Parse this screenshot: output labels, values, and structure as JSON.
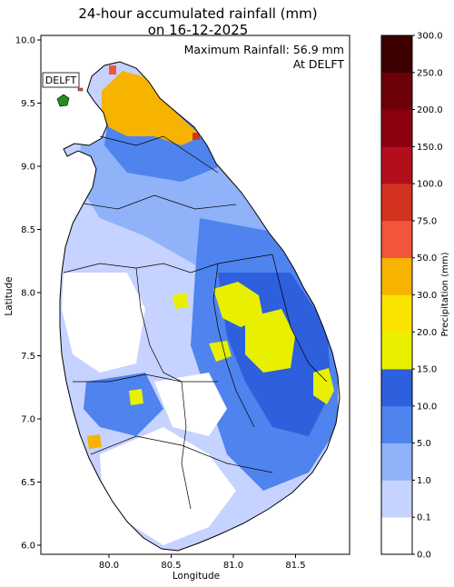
{
  "title": {
    "line1": "24-hour accumulated rainfall (mm)",
    "line2": "on 16-12-2025"
  },
  "annotation": {
    "max_line": "Maximum Rainfall: 56.9 mm",
    "at_line": "At DELFT",
    "station_label": "DELFT"
  },
  "axes": {
    "xlabel": "Longitude",
    "ylabel": "Latitude",
    "x_ticks": [
      "80.0",
      "80.5",
      "81.0",
      "81.5"
    ],
    "y_ticks": [
      "10.0",
      "9.5",
      "9.0",
      "8.5",
      "8.0",
      "7.5",
      "7.0",
      "6.5",
      "6.0"
    ]
  },
  "colorbar": {
    "label": "Precipitation (mm)",
    "levels": [
      "0.0",
      "0.1",
      "1.0",
      "5.0",
      "10.0",
      "15.0",
      "20.0",
      "30.0",
      "50.0",
      "75.0",
      "100.0",
      "150.0",
      "200.0",
      "250.0",
      "300.0"
    ],
    "colors": [
      "#ffffff",
      "#c6d2ff",
      "#8fb2f8",
      "#4f83ee",
      "#2e5fdc",
      "#e8f000",
      "#fbe300",
      "#f6b400",
      "#f2563a",
      "#d2321e",
      "#b20e1c",
      "#8d0010",
      "#6d0008",
      "#3c0000"
    ]
  },
  "legend_icons": {
    "marker": "green-island-marker"
  }
}
